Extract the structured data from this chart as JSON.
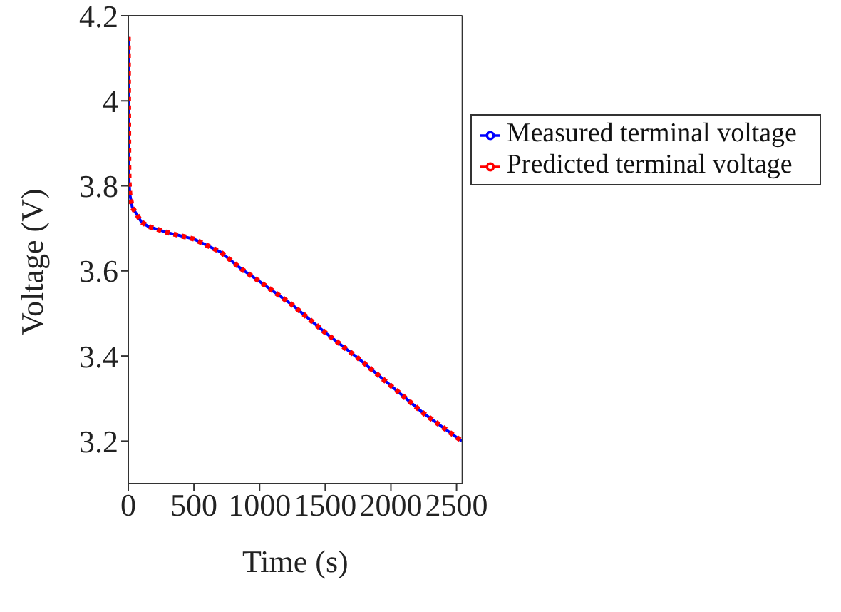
{
  "chart_data": {
    "type": "line",
    "xlabel": "Time (s)",
    "ylabel": "Voltage (V)",
    "x": [
      0,
      2,
      4,
      6,
      12,
      30,
      60,
      100,
      150,
      300,
      500,
      700,
      860,
      1000,
      1250,
      1500,
      1750,
      2000,
      2250,
      2540
    ],
    "series": [
      {
        "name": "Measured terminal voltage",
        "color": "#0000ff",
        "line_style": "solid",
        "values": [
          4.15,
          4.0,
          3.85,
          3.81,
          3.78,
          3.75,
          3.735,
          3.715,
          3.705,
          3.69,
          3.675,
          3.645,
          3.605,
          3.575,
          3.52,
          3.455,
          3.395,
          3.33,
          3.265,
          3.2
        ]
      },
      {
        "name": "Predicted terminal voltage",
        "color": "#ff0000",
        "line_style": "dotted",
        "values": [
          4.15,
          4.0,
          3.85,
          3.81,
          3.78,
          3.75,
          3.735,
          3.715,
          3.705,
          3.69,
          3.675,
          3.645,
          3.605,
          3.575,
          3.52,
          3.455,
          3.395,
          3.33,
          3.265,
          3.2
        ]
      }
    ],
    "xlim": [
      0,
      2544
    ],
    "xticks": [
      0,
      500,
      1000,
      1500,
      2000,
      2500
    ],
    "ylim": [
      3.1,
      4.2
    ],
    "yticks": [
      3.2,
      3.4,
      3.6,
      3.8,
      4,
      4.2
    ],
    "grid": false,
    "legend": "top right",
    "marker": "none"
  }
}
